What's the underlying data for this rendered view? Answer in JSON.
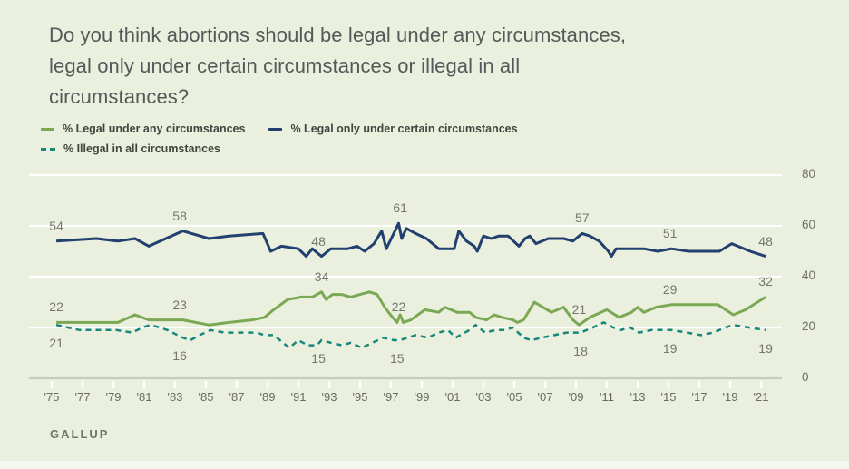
{
  "title": {
    "lines": [
      "Do you think abortions should be legal under any circumstances,",
      "legal only under certain circumstances or illegal in all",
      "circumstances?"
    ],
    "full_text": "Do you think abortions should be legal under any circumstances, legal only under certain circumstances or illegal in all circumstances?"
  },
  "legend": {
    "rows": [
      [
        {
          "label": "% Legal under any circumstances",
          "color": "#7aa854",
          "dash": false
        },
        {
          "label": "% Legal only under certain circumstances",
          "color": "#21406f",
          "dash": false
        }
      ],
      [
        {
          "label": "% Illegal in all circumstances",
          "color": "#17867c",
          "dash": true
        }
      ]
    ]
  },
  "source": "GALLUP",
  "colors": {
    "background": "#eaf0dd",
    "gridline": "#ffffff",
    "axis_line": "#c8ccbb",
    "tick_mark": "#ffffff",
    "value_label_text": "#75776d",
    "axis_label_text": "#6e7067",
    "title_text": "#56585a",
    "footer_bar": "#f5f8ee"
  },
  "chart_data": {
    "type": "line",
    "title": "Do you think abortions should be legal under any circumstances, legal only under certain circumstances or illegal in all circumstances?",
    "xlabel": "",
    "ylabel": "",
    "legend_position": "top-left",
    "grid": "horizontal white gridlines",
    "x_axis": {
      "tick_labels": [
        "'75",
        "'77",
        "'79",
        "'81",
        "'83",
        "'85",
        "'87",
        "'89",
        "'91",
        "'93",
        "'95",
        "'97",
        "'99",
        "'01",
        "'03",
        "'05",
        "'07",
        "'09",
        "'11",
        "'13",
        "'15",
        "'17",
        "'19",
        "'21"
      ],
      "tick_years": [
        1975,
        1977,
        1979,
        1981,
        1983,
        1985,
        1987,
        1989,
        1991,
        1993,
        1995,
        1997,
        1999,
        2001,
        2003,
        2005,
        2007,
        2009,
        2011,
        2013,
        2015,
        2017,
        2019,
        2021
      ],
      "range_years": [
        1975,
        2021
      ]
    },
    "y_axis": {
      "ticks": [
        0,
        20,
        40,
        60,
        80
      ],
      "gridlines": [
        20,
        40,
        60,
        80
      ],
      "range": [
        0,
        80
      ],
      "position": "right"
    },
    "series": [
      {
        "name": "% Legal under any circumstances",
        "key": "legal_any",
        "color": "#7aa854",
        "line_style": "solid",
        "label_side": "above",
        "point_labels": [
          [
            1975.3,
            22
          ],
          [
            1983.3,
            23
          ],
          [
            1992.5,
            34
          ],
          [
            1997.5,
            22
          ],
          [
            2009.2,
            21
          ],
          [
            2015.1,
            29
          ],
          [
            2021.3,
            32
          ]
        ],
        "points": [
          [
            1975.3,
            22
          ],
          [
            1977.9,
            22
          ],
          [
            1979.3,
            22
          ],
          [
            1980.4,
            25
          ],
          [
            1981.3,
            23
          ],
          [
            1982.3,
            23
          ],
          [
            1983.5,
            23
          ],
          [
            1985.2,
            21
          ],
          [
            1986.5,
            22
          ],
          [
            1988.0,
            23
          ],
          [
            1988.8,
            24
          ],
          [
            1989.4,
            27
          ],
          [
            1990.3,
            31
          ],
          [
            1991.2,
            32
          ],
          [
            1991.9,
            32
          ],
          [
            1992.5,
            34
          ],
          [
            1992.8,
            31
          ],
          [
            1993.2,
            33
          ],
          [
            1993.8,
            33
          ],
          [
            1994.4,
            32
          ],
          [
            1995.0,
            33
          ],
          [
            1995.6,
            34
          ],
          [
            1996.1,
            33
          ],
          [
            1996.6,
            28
          ],
          [
            1997.1,
            24
          ],
          [
            1997.4,
            22
          ],
          [
            1997.6,
            25
          ],
          [
            1997.8,
            22
          ],
          [
            1998.3,
            23
          ],
          [
            1999.2,
            27
          ],
          [
            2000.1,
            26
          ],
          [
            2000.5,
            28
          ],
          [
            2001.3,
            26
          ],
          [
            2002.1,
            26
          ],
          [
            2002.5,
            24
          ],
          [
            2003.2,
            23
          ],
          [
            2003.7,
            25
          ],
          [
            2004.2,
            24
          ],
          [
            2004.9,
            23
          ],
          [
            2005.2,
            22
          ],
          [
            2005.6,
            23
          ],
          [
            2006.3,
            30
          ],
          [
            2007.4,
            26
          ],
          [
            2008.2,
            28
          ],
          [
            2008.8,
            23
          ],
          [
            2009.2,
            21
          ],
          [
            2009.9,
            24
          ],
          [
            2011.0,
            27
          ],
          [
            2011.8,
            24
          ],
          [
            2012.6,
            26
          ],
          [
            2013.0,
            28
          ],
          [
            2013.4,
            26
          ],
          [
            2014.2,
            28
          ],
          [
            2015.2,
            29
          ],
          [
            2016.5,
            29
          ],
          [
            2018.2,
            29
          ],
          [
            2019.2,
            25
          ],
          [
            2020.0,
            27
          ],
          [
            2021.3,
            32
          ]
        ]
      },
      {
        "name": "% Legal only under certain circumstances",
        "key": "legal_certain",
        "color": "#21406f",
        "line_style": "solid",
        "label_side": "above",
        "point_labels": [
          [
            1975.3,
            54
          ],
          [
            1983.3,
            58
          ],
          [
            1992.3,
            48
          ],
          [
            1997.6,
            61
          ],
          [
            2009.4,
            57
          ],
          [
            2015.1,
            51
          ],
          [
            2021.3,
            48
          ]
        ],
        "points": [
          [
            1975.3,
            54
          ],
          [
            1977.9,
            55
          ],
          [
            1979.3,
            54
          ],
          [
            1980.4,
            55
          ],
          [
            1981.3,
            52
          ],
          [
            1983.5,
            58
          ],
          [
            1985.2,
            55
          ],
          [
            1986.5,
            56
          ],
          [
            1988.7,
            57
          ],
          [
            1989.2,
            50
          ],
          [
            1989.9,
            52
          ],
          [
            1991.0,
            51
          ],
          [
            1991.5,
            48
          ],
          [
            1991.9,
            51
          ],
          [
            1992.5,
            48
          ],
          [
            1993.1,
            51
          ],
          [
            1994.2,
            51
          ],
          [
            1994.8,
            52
          ],
          [
            1995.3,
            50
          ],
          [
            1995.9,
            53
          ],
          [
            1996.4,
            58
          ],
          [
            1996.7,
            51
          ],
          [
            1997.5,
            61
          ],
          [
            1997.7,
            55
          ],
          [
            1998.0,
            59
          ],
          [
            1998.6,
            57
          ],
          [
            1999.3,
            55
          ],
          [
            2000.1,
            51
          ],
          [
            2001.1,
            51
          ],
          [
            2001.4,
            58
          ],
          [
            2001.9,
            54
          ],
          [
            2002.4,
            52
          ],
          [
            2002.6,
            50
          ],
          [
            2003.0,
            56
          ],
          [
            2003.5,
            55
          ],
          [
            2004.0,
            56
          ],
          [
            2004.6,
            56
          ],
          [
            2005.3,
            52
          ],
          [
            2005.7,
            55
          ],
          [
            2006.0,
            56
          ],
          [
            2006.4,
            53
          ],
          [
            2007.2,
            55
          ],
          [
            2008.2,
            55
          ],
          [
            2008.8,
            54
          ],
          [
            2009.4,
            57
          ],
          [
            2009.9,
            56
          ],
          [
            2010.5,
            54
          ],
          [
            2011.1,
            50
          ],
          [
            2011.3,
            48
          ],
          [
            2011.6,
            51
          ],
          [
            2012.5,
            51
          ],
          [
            2013.4,
            51
          ],
          [
            2014.3,
            50
          ],
          [
            2015.2,
            51
          ],
          [
            2016.3,
            50
          ],
          [
            2017.3,
            50
          ],
          [
            2018.3,
            50
          ],
          [
            2019.1,
            53
          ],
          [
            2020.3,
            50
          ],
          [
            2021.3,
            48
          ]
        ]
      },
      {
        "name": "% Illegal in all circumstances",
        "key": "illegal_all",
        "color": "#17867c",
        "line_style": "dashed",
        "label_side": "below",
        "point_labels": [
          [
            1975.3,
            21
          ],
          [
            1983.3,
            16
          ],
          [
            1992.3,
            15
          ],
          [
            1997.4,
            15
          ],
          [
            2009.3,
            18
          ],
          [
            2015.1,
            19
          ],
          [
            2021.3,
            19
          ]
        ],
        "points": [
          [
            1975.3,
            21
          ],
          [
            1976.8,
            19
          ],
          [
            1977.9,
            19
          ],
          [
            1979.2,
            19
          ],
          [
            1980.2,
            18
          ],
          [
            1980.9,
            20
          ],
          [
            1981.4,
            21
          ],
          [
            1982.0,
            20
          ],
          [
            1982.5,
            19
          ],
          [
            1983.5,
            16
          ],
          [
            1984.0,
            15
          ],
          [
            1984.6,
            17
          ],
          [
            1985.3,
            19
          ],
          [
            1986.2,
            18
          ],
          [
            1987.1,
            18
          ],
          [
            1988.3,
            18
          ],
          [
            1988.8,
            17
          ],
          [
            1989.4,
            17
          ],
          [
            1990.4,
            12
          ],
          [
            1991.0,
            15
          ],
          [
            1991.6,
            13
          ],
          [
            1992.2,
            13
          ],
          [
            1992.5,
            15
          ],
          [
            1993.1,
            14
          ],
          [
            1993.8,
            13
          ],
          [
            1994.4,
            14
          ],
          [
            1995.1,
            12
          ],
          [
            1995.8,
            14
          ],
          [
            1996.5,
            16
          ],
          [
            1997.2,
            15
          ],
          [
            1997.6,
            15
          ],
          [
            1998.1,
            16
          ],
          [
            1998.6,
            17
          ],
          [
            1999.4,
            16
          ],
          [
            2000.1,
            18
          ],
          [
            2000.7,
            19
          ],
          [
            2001.2,
            16
          ],
          [
            2002.1,
            19
          ],
          [
            2002.5,
            21
          ],
          [
            2003.1,
            18
          ],
          [
            2003.8,
            19
          ],
          [
            2004.4,
            19
          ],
          [
            2004.9,
            20
          ],
          [
            2005.6,
            16
          ],
          [
            2006.1,
            15
          ],
          [
            2006.8,
            16
          ],
          [
            2007.6,
            17
          ],
          [
            2008.4,
            18
          ],
          [
            2009.3,
            18
          ],
          [
            2010.1,
            20
          ],
          [
            2010.8,
            22
          ],
          [
            2011.4,
            20
          ],
          [
            2011.9,
            19
          ],
          [
            2012.5,
            20
          ],
          [
            2013.1,
            18
          ],
          [
            2013.9,
            19
          ],
          [
            2014.5,
            19
          ],
          [
            2015.2,
            19
          ],
          [
            2016.2,
            18
          ],
          [
            2017.1,
            17
          ],
          [
            2017.9,
            18
          ],
          [
            2018.7,
            20
          ],
          [
            2019.2,
            21
          ],
          [
            2020.2,
            20
          ],
          [
            2021.3,
            19
          ]
        ]
      }
    ]
  }
}
